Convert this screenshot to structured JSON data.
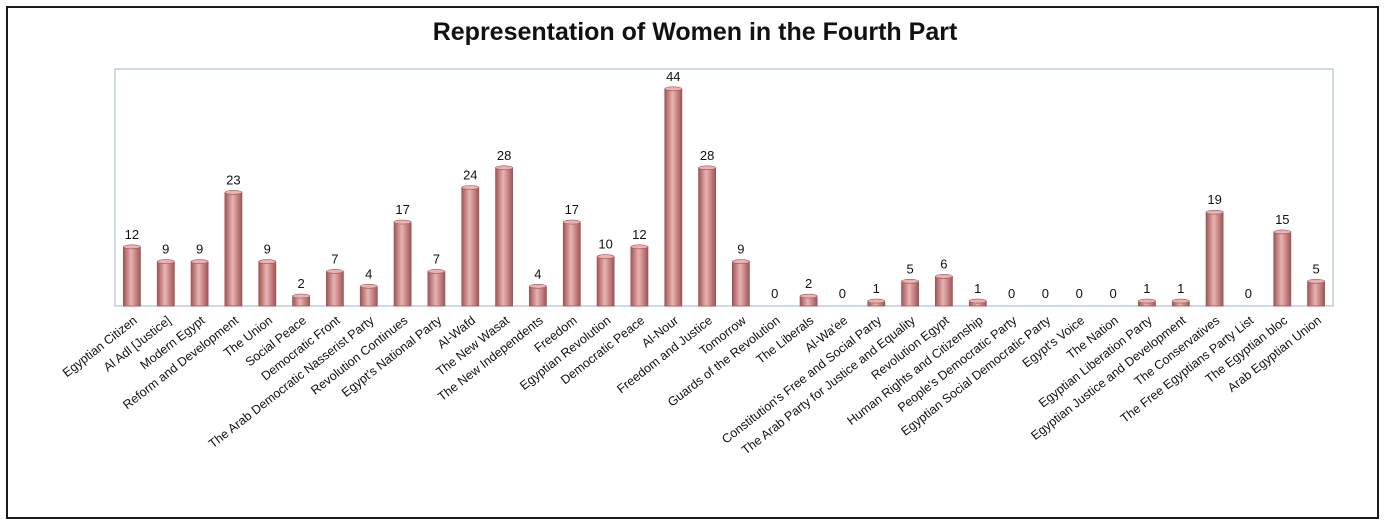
{
  "chart_data": {
    "type": "bar",
    "title": "Representation of Women in the Fourth Part",
    "xlabel": "",
    "ylabel": "",
    "ylim": [
      0,
      48
    ],
    "grid": false,
    "bar_color": "#c97b7b",
    "bar_color_dark": "#a05656",
    "bar_color_light": "#eab3b3",
    "plot_border_color": "#9db4d6",
    "categories": [
      "Egyptian Citizen",
      "Al Adl [Justice]",
      "Modern Egypt",
      "Reform and Development",
      "The Union",
      "Social Peace",
      "Democratic Front",
      "The Arab Democratic Nasserist Party",
      "Revolution Continues",
      "Egypt's National Party",
      "Al-Wafd",
      "The New Wasat",
      "The New Independents",
      "Freedom",
      "Egyptian Revolution",
      "Democratic Peace",
      "Al-Nour",
      "Freedom and Justice",
      "Tomorrow",
      "Guards of the Revolution",
      "The Liberals",
      "Al-Wa'ee",
      "Constitution's Free and Social Party",
      "The Arab Party for Justice and Equality",
      "Revolution Egypt",
      "Human Rights and Citizenship",
      "People's Democratic Party",
      "Egyptian Social Democratic Party",
      "Egypt's Voice",
      "The Nation",
      "Egyptian Liberation Party",
      "Egyptian Justice and Development",
      "The Conservatives",
      "The Free Egyptians Party List",
      "The Egyptian bloc",
      "Arab Egyptian Union"
    ],
    "values": [
      12,
      9,
      9,
      23,
      9,
      2,
      7,
      4,
      17,
      7,
      24,
      28,
      4,
      17,
      10,
      12,
      44,
      28,
      9,
      0,
      2,
      0,
      1,
      5,
      6,
      1,
      0,
      0,
      0,
      0,
      1,
      1,
      19,
      0,
      15,
      5
    ]
  }
}
